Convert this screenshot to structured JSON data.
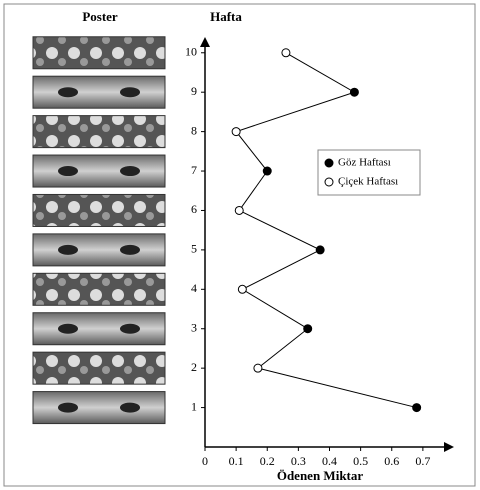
{
  "chart_data": {
    "type": "line",
    "panel_label": "Poster",
    "y_label": "Hafta",
    "x_label": "Ödenen Miktar",
    "xlim": [
      0,
      0.8
    ],
    "xticks": [
      0,
      0.1,
      0.2,
      0.3,
      0.4,
      0.5,
      0.6,
      0.7
    ],
    "ylim": [
      0,
      10.4
    ],
    "yticks": [
      1,
      2,
      3,
      4,
      5,
      6,
      7,
      8,
      9,
      10
    ],
    "line_color": "#000000",
    "series": [
      {
        "name": "Göz Haftası",
        "color": "#000000",
        "marker": "filled",
        "y": [
          1,
          3,
          5,
          7,
          9
        ],
        "values": [
          0.68,
          0.33,
          0.37,
          0.2,
          0.48
        ]
      },
      {
        "name": "Çiçek Haftası",
        "color": "#000000",
        "marker": "open",
        "y": [
          2,
          4,
          6,
          8,
          10
        ],
        "values": [
          0.17,
          0.12,
          0.11,
          0.1,
          0.26
        ]
      }
    ]
  }
}
